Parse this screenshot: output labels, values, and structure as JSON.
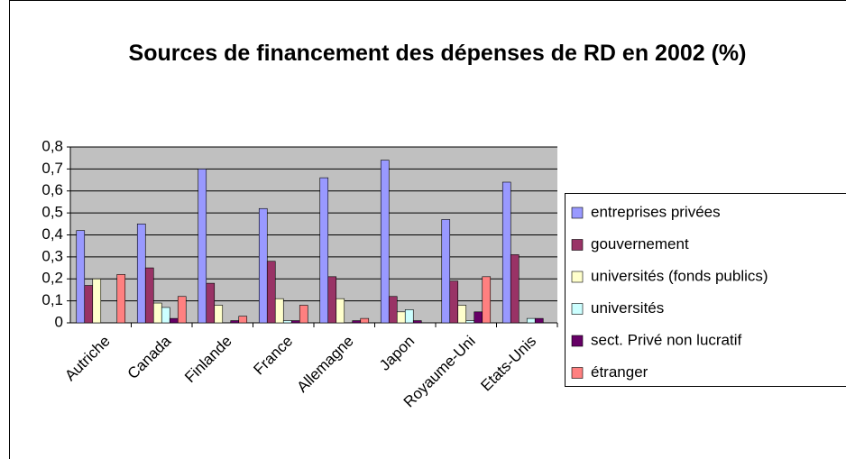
{
  "chart_data": {
    "type": "bar",
    "title": "Sources de financement des dépenses de RD en 2002 (%)",
    "categories": [
      "Autriche",
      "Canada",
      "Finlande",
      "France",
      "Allemagne",
      "Japon",
      "Royaume-Uni",
      "Etats-Unis"
    ],
    "series": [
      {
        "name": "entreprises privées",
        "color": "#9999FF",
        "values": [
          0.42,
          0.45,
          0.7,
          0.52,
          0.66,
          0.74,
          0.47,
          0.64
        ]
      },
      {
        "name": "gouvernement",
        "color": "#993366",
        "values": [
          0.17,
          0.25,
          0.18,
          0.28,
          0.21,
          0.12,
          0.19,
          0.31
        ]
      },
      {
        "name": "universités (fonds publics)",
        "color": "#FFFFCC",
        "values": [
          0.2,
          0.09,
          0.08,
          0.11,
          0.11,
          0.05,
          0.08,
          0
        ]
      },
      {
        "name": "universités",
        "color": "#CCFFFF",
        "values": [
          0,
          0.07,
          0,
          0.01,
          0,
          0.06,
          0.01,
          0.02
        ]
      },
      {
        "name": "sect. Privé non lucratif",
        "color": "#660066",
        "values": [
          0,
          0.02,
          0.01,
          0.01,
          0.01,
          0.01,
          0.05,
          0.02
        ]
      },
      {
        "name": "étranger",
        "color": "#FF8080",
        "values": [
          0.22,
          0.12,
          0.03,
          0.08,
          0.02,
          0,
          0.21,
          0
        ]
      }
    ],
    "ylim": [
      0,
      0.8
    ],
    "yticks": [
      0,
      {
        "value": 0.1,
        "label": "0,1"
      },
      {
        "value": 0.2,
        "label": "0,2"
      },
      {
        "value": 0.3,
        "label": "0,3"
      },
      {
        "value": 0.4,
        "label": "0,4"
      },
      {
        "value": 0.5,
        "label": "0,5"
      },
      {
        "value": 0.6,
        "label": "0,6"
      },
      {
        "value": 0.7,
        "label": "0,7"
      },
      {
        "value": 0.8,
        "label": "0,8"
      }
    ],
    "grid": true,
    "legend": "right"
  }
}
